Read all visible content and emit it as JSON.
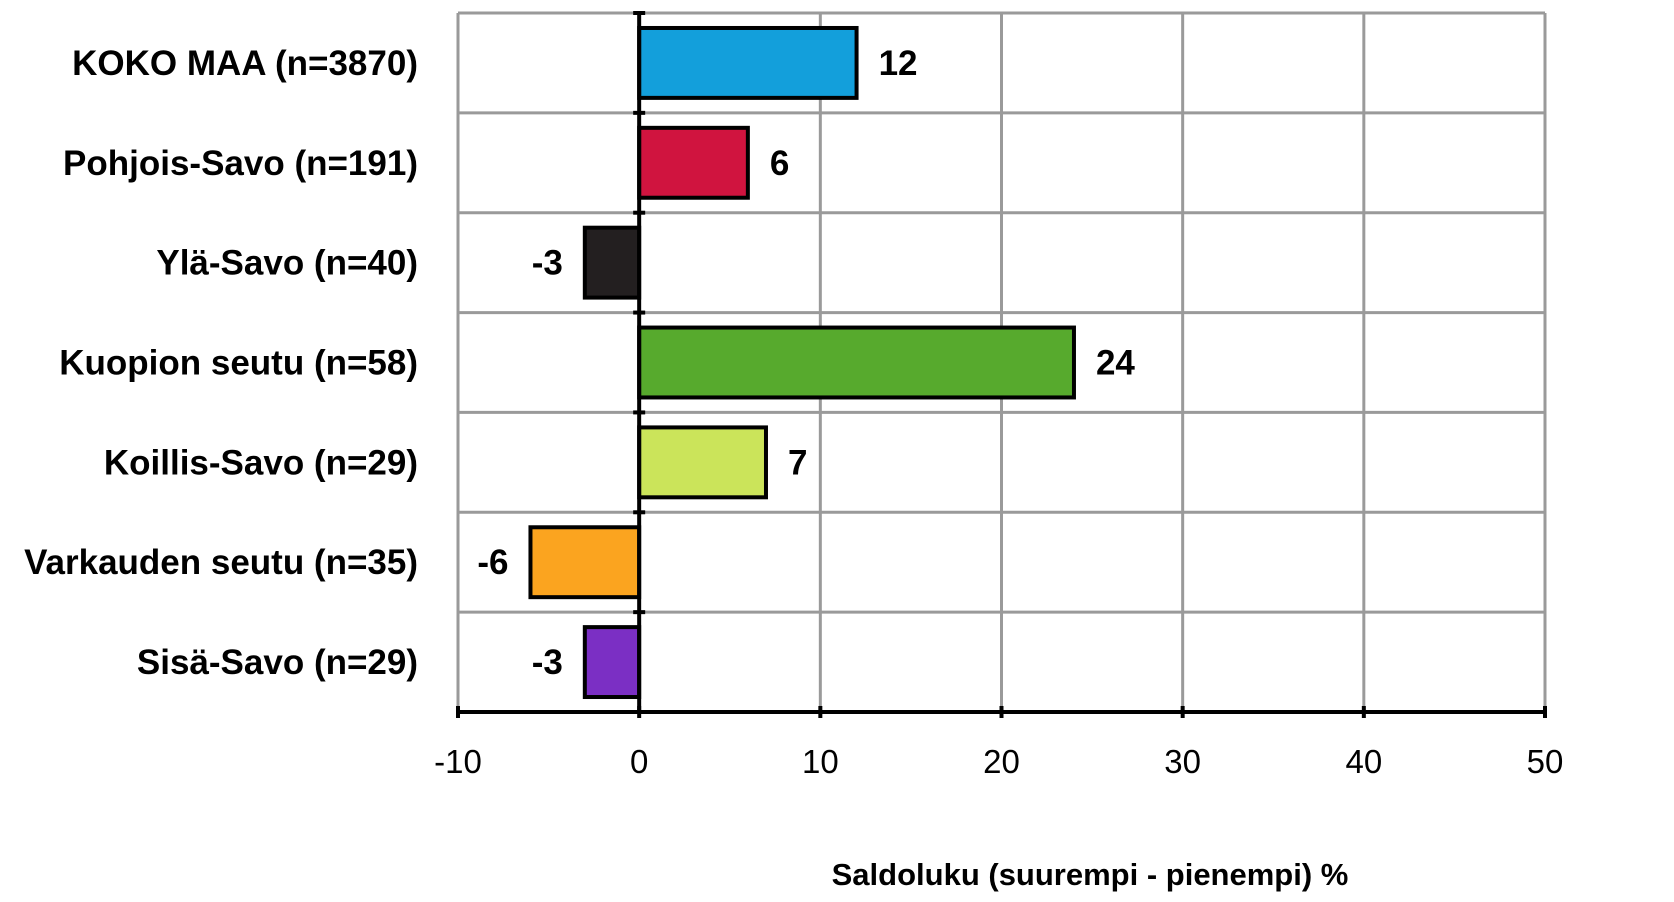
{
  "chart_data": {
    "type": "bar",
    "orientation": "horizontal",
    "title": "",
    "xlabel": "Saldoluku (suurempi - pienempi) %",
    "ylabel": "",
    "xlim": [
      -10,
      50
    ],
    "xticks": [
      -10,
      0,
      10,
      20,
      30,
      40,
      50
    ],
    "grid": true,
    "legend": "none",
    "categories": [
      "KOKO MAA (n=3870)",
      "Pohjois-Savo (n=191)",
      "Ylä-Savo (n=40)",
      "Kuopion seutu (n=58)",
      "Koillis-Savo (n=29)",
      "Varkauden seutu (n=35)",
      "Sisä-Savo (n=29)"
    ],
    "values": [
      12,
      6,
      -3,
      24,
      7,
      -6,
      -3
    ],
    "colors": [
      "#139FDB",
      "#D0143F",
      "#231F20",
      "#57AA2D",
      "#CBE45A",
      "#FBA41F",
      "#7B2FC4"
    ]
  }
}
